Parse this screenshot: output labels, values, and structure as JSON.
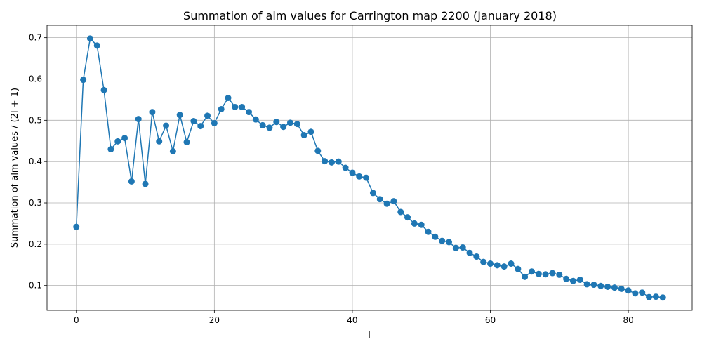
{
  "chart_data": {
    "type": "line",
    "title": "Summation of alm values for Carrington map 2200 (January 2018)",
    "xlabel": "l",
    "ylabel": "Summation of alm values / (2l + 1)",
    "xlim": [
      -4.25,
      89.25
    ],
    "ylim": [
      0.04,
      0.73
    ],
    "xticks": [
      0,
      20,
      40,
      60,
      80
    ],
    "yticks": [
      0.1,
      0.2,
      0.3,
      0.4,
      0.5,
      0.6,
      0.7
    ],
    "grid": true,
    "series": [
      {
        "color": "#1f77b4",
        "marker": "circle",
        "x": [
          0,
          1,
          2,
          3,
          4,
          5,
          6,
          7,
          8,
          9,
          10,
          11,
          12,
          13,
          14,
          15,
          16,
          17,
          18,
          19,
          20,
          21,
          22,
          23,
          24,
          25,
          26,
          27,
          28,
          29,
          30,
          31,
          32,
          33,
          34,
          35,
          36,
          37,
          38,
          39,
          40,
          41,
          42,
          43,
          44,
          45,
          46,
          47,
          48,
          49,
          50,
          51,
          52,
          53,
          54,
          55,
          56,
          57,
          58,
          59,
          60,
          61,
          62,
          63,
          64,
          65,
          66,
          67,
          68,
          69,
          70,
          71,
          72,
          73,
          74,
          75,
          76,
          77,
          78,
          79,
          80,
          81,
          82,
          83,
          84,
          85
        ],
        "y": [
          0.242,
          0.598,
          0.698,
          0.681,
          0.573,
          0.43,
          0.449,
          0.457,
          0.352,
          0.503,
          0.346,
          0.52,
          0.449,
          0.487,
          0.425,
          0.513,
          0.447,
          0.498,
          0.486,
          0.511,
          0.493,
          0.527,
          0.554,
          0.532,
          0.532,
          0.52,
          0.502,
          0.488,
          0.482,
          0.496,
          0.484,
          0.494,
          0.491,
          0.464,
          0.472,
          0.426,
          0.401,
          0.398,
          0.4,
          0.385,
          0.373,
          0.364,
          0.361,
          0.324,
          0.309,
          0.298,
          0.304,
          0.278,
          0.265,
          0.25,
          0.247,
          0.23,
          0.218,
          0.208,
          0.205,
          0.191,
          0.192,
          0.179,
          0.17,
          0.157,
          0.153,
          0.149,
          0.146,
          0.153,
          0.14,
          0.121,
          0.134,
          0.128,
          0.127,
          0.13,
          0.126,
          0.116,
          0.111,
          0.114,
          0.103,
          0.102,
          0.099,
          0.097,
          0.095,
          0.092,
          0.088,
          0.081,
          0.083,
          0.072,
          0.073,
          0.071
        ]
      }
    ]
  }
}
